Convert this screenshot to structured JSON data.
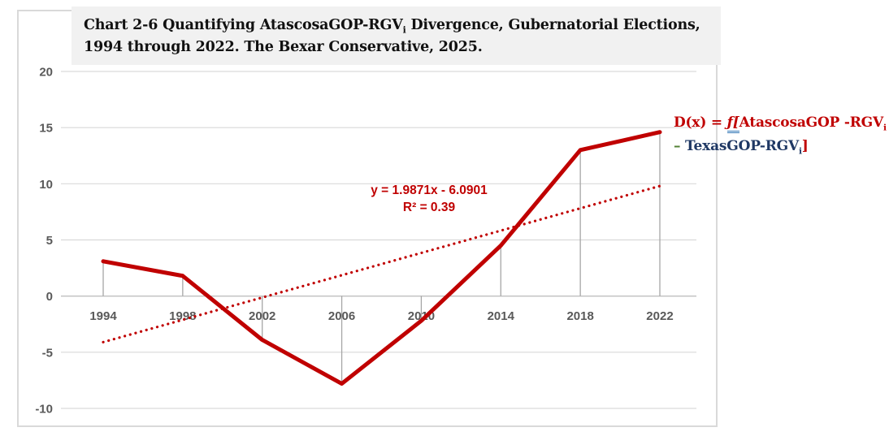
{
  "title": {
    "part1": "Chart 2-6 Quantifying AtascosaGOP-RGV",
    "sub": "i",
    "part2": " Divergence, Gubernatorial Elections,",
    "line2": "1994 through 2022. The Bexar Conservative, 2025."
  },
  "chart_data": {
    "type": "line",
    "categories": [
      "1994",
      "1998",
      "2002",
      "2006",
      "2010",
      "2014",
      "2018",
      "2022"
    ],
    "series": [
      {
        "values": [
          3.1,
          1.8,
          -3.9,
          -7.8,
          -2.2,
          4.5,
          13.0,
          14.6
        ],
        "color": "#c00000"
      }
    ],
    "trendline": {
      "equation": "y = 1.9871x - 6.0901",
      "r_squared": "R² = 0.39",
      "start_value": -4.1,
      "end_value": 9.8,
      "style": "dotted",
      "color": "#c00000"
    },
    "ylim": [
      -10,
      20
    ],
    "yticks": [
      20,
      15,
      10,
      5,
      0,
      -5,
      -10
    ],
    "grid": true,
    "legend": false,
    "drop_lines": true,
    "colors": {
      "gridline": "#d9d9d9",
      "axis_line": "#bfbfbf",
      "drop_line": "#a6a6a6",
      "tick_label": "#595959"
    }
  },
  "annotation": {
    "lhs": "D(x) = ",
    "integral": "ƒ[",
    "term1": "AtascosaGOP -RGV",
    "sub_i": "i",
    "minus": "– ",
    "term2": "TexasGOP-RGV",
    "close_bracket": "]"
  }
}
